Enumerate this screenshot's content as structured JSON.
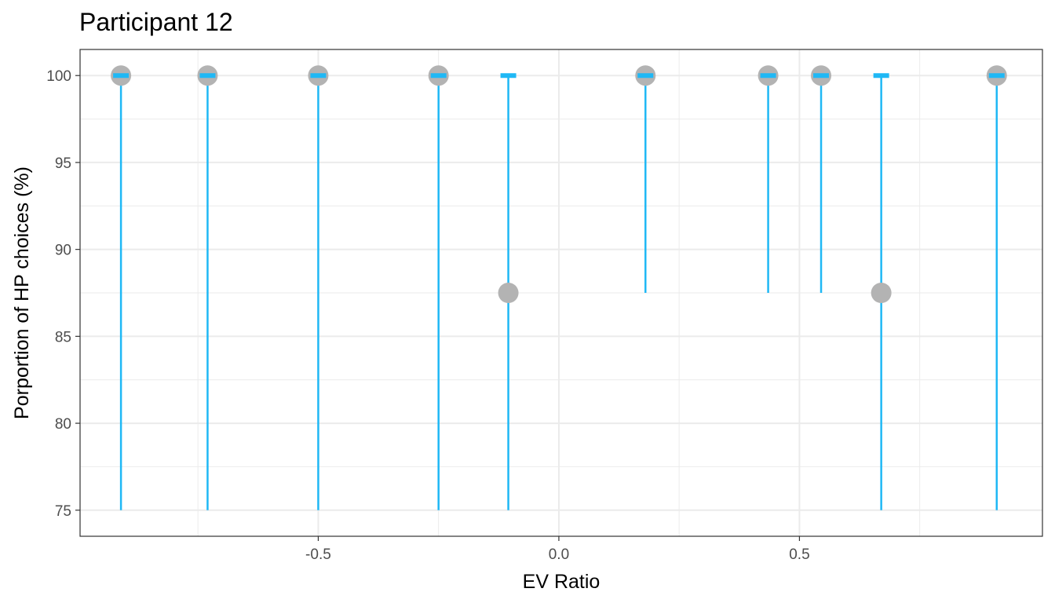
{
  "chart_data": {
    "type": "scatter",
    "title": "Participant 12",
    "xlabel": "EV Ratio",
    "ylabel": "Porportion of HP choices (%)",
    "xlim": [
      -0.995,
      1.005
    ],
    "ylim": [
      73.5,
      101.5
    ],
    "x_ticks": [
      -0.5,
      0.0,
      0.5
    ],
    "x_tick_labels": [
      "-0.5",
      "0.0",
      "0.5"
    ],
    "x_minor_ticks": [
      -0.75,
      -0.25,
      0.25,
      0.75
    ],
    "y_ticks": [
      75,
      80,
      85,
      90,
      95,
      100
    ],
    "y_tick_labels": [
      "75",
      "80",
      "85",
      "90",
      "95",
      "100"
    ],
    "y_minor_ticks": [
      77.5,
      82.5,
      87.5,
      92.5,
      97.5
    ],
    "grid": true,
    "theme": "bw",
    "colors": {
      "point": "#b3b3b3",
      "interval": "#1fb8f5",
      "grid": "#ebebeb",
      "panel_border": "#333333",
      "tick_label": "#4d4d4d"
    },
    "points": [
      {
        "x": -0.91,
        "y": 100,
        "interval_low": 75,
        "interval_high": 100
      },
      {
        "x": -0.73,
        "y": 100,
        "interval_low": 75,
        "interval_high": 100
      },
      {
        "x": -0.5,
        "y": 100,
        "interval_low": 75,
        "interval_high": 100
      },
      {
        "x": -0.25,
        "y": 100,
        "interval_low": 75,
        "interval_high": 100
      },
      {
        "x": -0.105,
        "y": 87.5,
        "interval_low": 75,
        "interval_high": 100
      },
      {
        "x": 0.18,
        "y": 100,
        "interval_low": 87.5,
        "interval_high": 100
      },
      {
        "x": 0.435,
        "y": 100,
        "interval_low": 87.5,
        "interval_high": 100
      },
      {
        "x": 0.545,
        "y": 100,
        "interval_low": 87.5,
        "interval_high": 100
      },
      {
        "x": 0.67,
        "y": 87.5,
        "interval_low": 75,
        "interval_high": 100
      },
      {
        "x": 0.91,
        "y": 100,
        "interval_low": 75,
        "interval_high": 100
      }
    ]
  }
}
